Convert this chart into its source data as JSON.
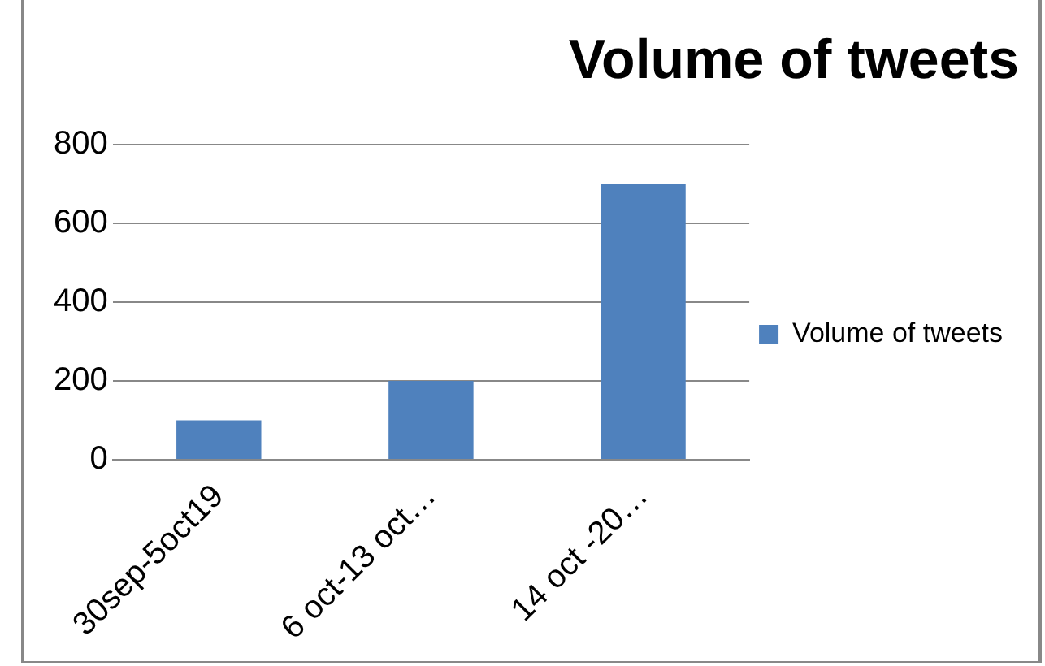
{
  "chart_data": {
    "type": "bar",
    "title": "Volume of tweets",
    "categories": [
      "30sep-5oct19",
      "6 oct-13 oct…",
      "14 oct -20…"
    ],
    "series": [
      {
        "name": "Volume of tweets",
        "color": "#4f81bd",
        "values": [
          100,
          200,
          700
        ]
      }
    ],
    "ylim": [
      0,
      800
    ],
    "yticks": [
      0,
      200,
      400,
      600,
      800
    ],
    "grid": "y",
    "legend": "right"
  }
}
